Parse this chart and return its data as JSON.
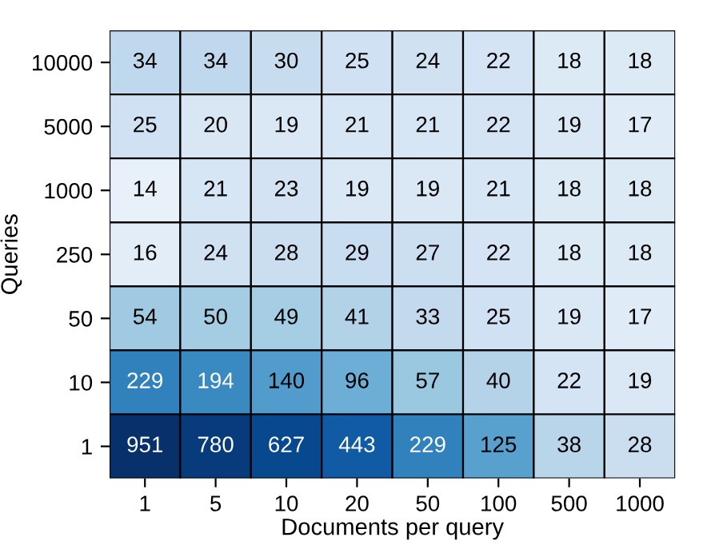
{
  "chart_data": {
    "type": "heatmap",
    "xlabel": "Documents per query",
    "ylabel": "Queries",
    "categories": [
      "1",
      "5",
      "10",
      "20",
      "50",
      "100",
      "500",
      "1000"
    ],
    "y_categories": [
      "10000",
      "5000",
      "1000",
      "250",
      "50",
      "10",
      "1"
    ],
    "cells": [
      [
        34,
        34,
        30,
        25,
        24,
        22,
        18,
        18
      ],
      [
        25,
        20,
        19,
        21,
        21,
        22,
        19,
        17
      ],
      [
        14,
        21,
        23,
        19,
        19,
        21,
        18,
        18
      ],
      [
        16,
        24,
        28,
        29,
        27,
        22,
        18,
        18
      ],
      [
        54,
        50,
        49,
        41,
        33,
        25,
        19,
        17
      ],
      [
        229,
        194,
        140,
        96,
        57,
        40,
        22,
        19
      ],
      [
        951,
        780,
        627,
        443,
        229,
        125,
        38,
        28
      ]
    ],
    "data_labels": true
  }
}
